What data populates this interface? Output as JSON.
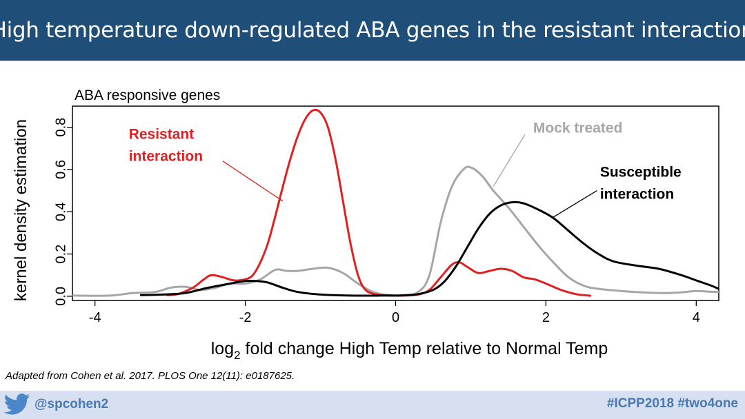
{
  "slide": {
    "title": "High temperature down-regulated ABA genes in the resistant interaction",
    "citation": "Adapted from Cohen et al. 2017. PLOS One 12(11): e0187625.",
    "footer": {
      "handle": "@spcohen2",
      "hashtags": "#ICPP2018 #two4one",
      "icon": "twitter-bird-icon"
    }
  },
  "chart_data": {
    "type": "line",
    "title": "ABA responsive genes",
    "xlabel_main": "log",
    "xlabel_sub": "2",
    "xlabel_rest": " fold change High Temp relative to Normal Temp",
    "ylabel": "kernel density estimation",
    "xlim": [
      -4.3,
      4.3
    ],
    "ylim": [
      -0.02,
      0.9
    ],
    "x_ticks": [
      {
        "value": -4,
        "label": "-4"
      },
      {
        "value": -2,
        "label": "-2"
      },
      {
        "value": 0,
        "label": "0"
      },
      {
        "value": 2,
        "label": "2"
      },
      {
        "value": 4,
        "label": "4"
      }
    ],
    "y_ticks": [
      {
        "value": 0.0,
        "label": "0.0"
      },
      {
        "value": 0.2,
        "label": "0.2"
      },
      {
        "value": 0.4,
        "label": "0.4"
      },
      {
        "value": 0.6,
        "label": "0.6"
      },
      {
        "value": 0.8,
        "label": "0.8"
      }
    ],
    "grid": false,
    "series": [
      {
        "key": "mock",
        "color": "#a6a6a6",
        "x": [
          -4.3,
          -3.8,
          -3.5,
          -3.2,
          -3.0,
          -2.8,
          -2.6,
          -2.4,
          -2.2,
          -2.0,
          -1.8,
          -1.6,
          -1.45,
          -1.3,
          -1.1,
          -0.9,
          -0.7,
          -0.5,
          -0.3,
          -0.1,
          0.1,
          0.3,
          0.45,
          0.6,
          0.75,
          0.9,
          1.0,
          1.15,
          1.3,
          1.5,
          1.7,
          1.9,
          2.1,
          2.3,
          2.5,
          2.7,
          3.0,
          3.3,
          3.6,
          3.85,
          4.0,
          4.15,
          4.3
        ],
        "y": [
          0.003,
          0.003,
          0.015,
          0.02,
          0.04,
          0.045,
          0.03,
          0.04,
          0.06,
          0.06,
          0.08,
          0.125,
          0.12,
          0.12,
          0.13,
          0.135,
          0.11,
          0.06,
          0.02,
          0.005,
          0.005,
          0.02,
          0.1,
          0.35,
          0.52,
          0.6,
          0.61,
          0.57,
          0.5,
          0.42,
          0.33,
          0.24,
          0.16,
          0.09,
          0.05,
          0.035,
          0.025,
          0.018,
          0.015,
          0.02,
          0.025,
          0.022,
          0.02
        ]
      },
      {
        "key": "resistant",
        "color": "#e02020",
        "x": [
          -3.05,
          -2.9,
          -2.7,
          -2.55,
          -2.45,
          -2.3,
          -2.15,
          -2.0,
          -1.9,
          -1.8,
          -1.7,
          -1.6,
          -1.5,
          -1.4,
          -1.3,
          -1.2,
          -1.1,
          -1.0,
          -0.9,
          -0.8,
          -0.7,
          -0.6,
          -0.5,
          -0.4,
          -0.25,
          -0.1,
          0.1,
          0.3,
          0.45,
          0.6,
          0.75,
          0.85,
          0.95,
          1.1,
          1.25,
          1.4,
          1.55,
          1.7,
          1.85,
          2.0,
          2.2,
          2.4,
          2.6
        ],
        "y": [
          0.005,
          0.01,
          0.04,
          0.08,
          0.1,
          0.09,
          0.075,
          0.08,
          0.1,
          0.16,
          0.25,
          0.38,
          0.52,
          0.65,
          0.76,
          0.84,
          0.88,
          0.87,
          0.8,
          0.65,
          0.45,
          0.25,
          0.1,
          0.03,
          0.008,
          0.004,
          0.003,
          0.008,
          0.03,
          0.09,
          0.15,
          0.16,
          0.14,
          0.11,
          0.12,
          0.13,
          0.12,
          0.09,
          0.08,
          0.06,
          0.03,
          0.01,
          0.002
        ]
      },
      {
        "key": "susceptible",
        "color": "#000000",
        "x": [
          -3.4,
          -3.1,
          -2.8,
          -2.5,
          -2.2,
          -2.0,
          -1.85,
          -1.7,
          -1.5,
          -1.3,
          -1.0,
          -0.6,
          -0.2,
          0.1,
          0.3,
          0.5,
          0.65,
          0.8,
          0.95,
          1.1,
          1.25,
          1.4,
          1.55,
          1.7,
          1.9,
          2.1,
          2.3,
          2.5,
          2.7,
          2.9,
          3.2,
          3.5,
          3.8,
          4.0,
          4.2,
          4.3
        ],
        "y": [
          0.005,
          0.008,
          0.015,
          0.04,
          0.06,
          0.072,
          0.072,
          0.065,
          0.04,
          0.02,
          0.008,
          0.003,
          0.003,
          0.004,
          0.01,
          0.03,
          0.07,
          0.14,
          0.23,
          0.32,
          0.39,
          0.43,
          0.445,
          0.44,
          0.41,
          0.37,
          0.31,
          0.25,
          0.2,
          0.165,
          0.145,
          0.13,
          0.1,
          0.075,
          0.05,
          0.035
        ]
      }
    ],
    "annotations": [
      {
        "key": "resistant",
        "lines": [
          "Resistant",
          "interaction"
        ],
        "color": "#e02020",
        "text_x": -3.55,
        "text_y": 0.745,
        "from": [
          -2.3,
          0.64
        ],
        "to": [
          -1.5,
          0.45
        ]
      },
      {
        "key": "mock",
        "lines": [
          "Mock treated"
        ],
        "color": "#a6a6a6",
        "text_x": 1.83,
        "text_y": 0.775,
        "from": [
          1.72,
          0.765
        ],
        "to": [
          1.3,
          0.52
        ]
      },
      {
        "key": "susceptible",
        "lines": [
          "Susceptible",
          "interaction"
        ],
        "color": "#000000",
        "text_x": 2.72,
        "text_y": 0.565,
        "from": [
          2.68,
          0.5
        ],
        "to": [
          2.1,
          0.375
        ]
      }
    ]
  }
}
